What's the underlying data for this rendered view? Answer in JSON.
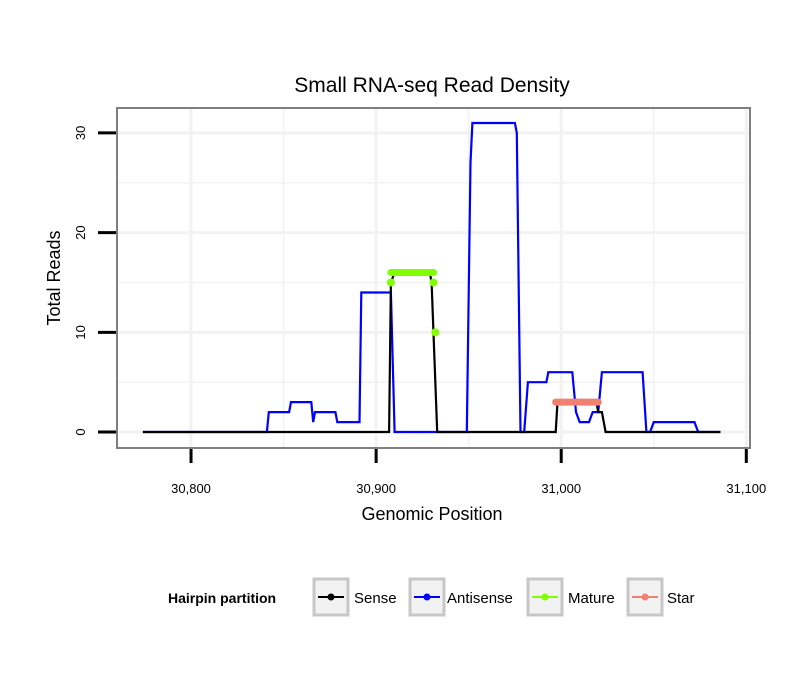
{
  "chart_data": {
    "type": "line",
    "title": "Small RNA-seq Read Density",
    "xlabel": "Genomic Position",
    "ylabel": "Total Reads",
    "xlim": [
      30760,
      31102
    ],
    "ylim": [
      -1.6,
      32.5
    ],
    "x_ticks": [
      30800,
      30900,
      31000,
      31100
    ],
    "x_tick_labels": [
      "30,800",
      "30,900",
      "31,000",
      "31,100"
    ],
    "y_ticks": [
      0,
      10,
      20,
      30
    ],
    "y_tick_labels": [
      "0",
      "10",
      "20",
      "30"
    ],
    "grid": true,
    "legend_title": "Hairpin partition",
    "legend_position": "bottom",
    "colors": {
      "Sense": "#000000",
      "Antisense": "#0000ff",
      "Mature": "#7fff00",
      "Star": "#f08070"
    },
    "series": [
      {
        "name": "Sense",
        "x": [
          30774,
          30907,
          30908,
          30910,
          30929,
          30930,
          30933,
          30997,
          30998,
          31019,
          31020,
          31022,
          31024,
          31086
        ],
        "y": [
          0,
          0,
          15,
          16,
          16,
          15,
          0,
          0,
          3,
          3,
          2,
          2,
          0,
          0
        ]
      },
      {
        "name": "Antisense",
        "x": [
          30774,
          30841,
          30842,
          30853,
          30854,
          30865,
          30866,
          30867,
          30878,
          30879,
          30891,
          30892,
          30908,
          30910,
          30949,
          30951,
          30952,
          30975,
          30976,
          30978,
          30980,
          30982,
          30992,
          30993,
          31006,
          31008,
          31010,
          31015,
          31017,
          31020,
          31022,
          31044,
          31046,
          31048,
          31050,
          31072,
          31074,
          31086
        ],
        "y": [
          0,
          0,
          2,
          2,
          3,
          3,
          1,
          2,
          2,
          1,
          1,
          14,
          14,
          0,
          0,
          27,
          31,
          31,
          30,
          0,
          0,
          5,
          5,
          6,
          6,
          2,
          1,
          1,
          2,
          2,
          6,
          6,
          0,
          0,
          1,
          1,
          0,
          0
        ]
      },
      {
        "name": "Mature",
        "segment": {
          "x": [
            30908,
            30931
          ],
          "y": 16
        },
        "points": {
          "x": [
            30908,
            30931,
            30932
          ],
          "y": [
            15,
            15,
            10
          ]
        }
      },
      {
        "name": "Star",
        "segment": {
          "x": [
            30997,
            31020
          ],
          "y": 3
        }
      }
    ]
  }
}
